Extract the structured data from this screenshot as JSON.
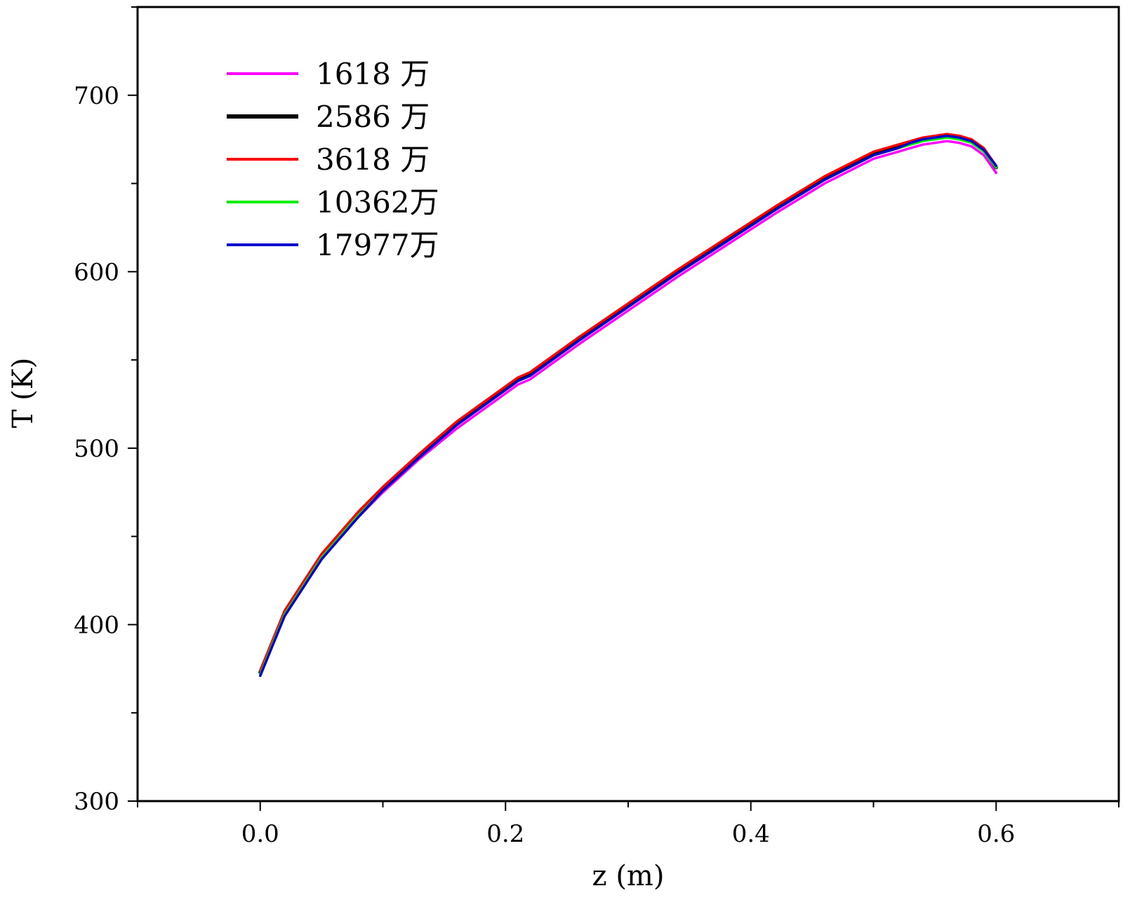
{
  "chart_data": {
    "type": "line",
    "xlabel": "z (m)",
    "ylabel": "T (K)",
    "xlim": [
      -0.1,
      0.7
    ],
    "ylim": [
      300,
      750
    ],
    "x_ticks": [
      "0.0",
      "0.2",
      "0.4",
      "0.6"
    ],
    "x_tick_values": [
      0.0,
      0.2,
      0.4,
      0.6
    ],
    "y_ticks": [
      "300",
      "400",
      "500",
      "600",
      "700"
    ],
    "y_tick_values": [
      300,
      400,
      500,
      600,
      700
    ],
    "grid": false,
    "legend_position": "top-left",
    "series": [
      {
        "name": "1618 万",
        "color": "#ff00ff",
        "x": [
          0.0,
          0.02,
          0.05,
          0.08,
          0.1,
          0.13,
          0.16,
          0.19,
          0.21,
          0.22,
          0.23,
          0.26,
          0.3,
          0.34,
          0.38,
          0.42,
          0.46,
          0.5,
          0.52,
          0.53,
          0.54,
          0.55,
          0.56,
          0.57,
          0.58,
          0.59,
          0.6
        ],
        "y": [
          373,
          405,
          437,
          461,
          475,
          494,
          511,
          526,
          536,
          539,
          544,
          559,
          578,
          597,
          615,
          633,
          650,
          664,
          668,
          670,
          672,
          673,
          674,
          673,
          671,
          666,
          656
        ]
      },
      {
        "name": "2586 万",
        "color": "#000000",
        "x": [
          0.0,
          0.02,
          0.05,
          0.08,
          0.1,
          0.13,
          0.16,
          0.19,
          0.21,
          0.22,
          0.23,
          0.26,
          0.3,
          0.34,
          0.38,
          0.42,
          0.46,
          0.5,
          0.52,
          0.53,
          0.54,
          0.55,
          0.56,
          0.57,
          0.58,
          0.59,
          0.6
        ],
        "y": [
          373,
          407,
          439,
          463,
          477,
          496,
          514,
          529,
          539,
          542,
          547,
          562,
          581,
          600,
          618,
          636,
          653,
          667,
          671,
          673,
          675,
          676,
          677,
          676,
          674,
          669,
          659
        ]
      },
      {
        "name": "3618 万",
        "color": "#ff0000",
        "x": [
          0.0,
          0.02,
          0.05,
          0.08,
          0.1,
          0.13,
          0.16,
          0.19,
          0.21,
          0.22,
          0.23,
          0.26,
          0.3,
          0.34,
          0.38,
          0.42,
          0.46,
          0.5,
          0.52,
          0.53,
          0.54,
          0.55,
          0.56,
          0.57,
          0.58,
          0.59,
          0.6
        ],
        "y": [
          374,
          408,
          440,
          464,
          478,
          497,
          515,
          530,
          540,
          543,
          548,
          563,
          582,
          601,
          619,
          637,
          654,
          668,
          672,
          674,
          676,
          677,
          678,
          677,
          675,
          670,
          660
        ]
      },
      {
        "name": "10362万",
        "color": "#00ee00",
        "x": [
          0.0,
          0.02,
          0.05,
          0.08,
          0.1,
          0.13,
          0.16,
          0.19,
          0.21,
          0.22,
          0.23,
          0.26,
          0.3,
          0.34,
          0.38,
          0.42,
          0.46,
          0.5,
          0.52,
          0.53,
          0.54,
          0.55,
          0.56,
          0.57,
          0.58,
          0.59,
          0.6
        ],
        "y": [
          372,
          406,
          438,
          462,
          476,
          495,
          513,
          528,
          538,
          541,
          546,
          561,
          580,
          599,
          617,
          635,
          652,
          666,
          670,
          672,
          674,
          675,
          676,
          675,
          673,
          668,
          659
        ]
      },
      {
        "name": "17977万",
        "color": "#0000cc",
        "x": [
          0.0,
          0.02,
          0.05,
          0.08,
          0.1,
          0.13,
          0.16,
          0.19,
          0.21,
          0.22,
          0.23,
          0.26,
          0.3,
          0.34,
          0.38,
          0.42,
          0.46,
          0.5,
          0.52,
          0.53,
          0.54,
          0.55,
          0.56,
          0.57,
          0.58,
          0.59,
          0.6
        ],
        "y": [
          371,
          405,
          437,
          461,
          476,
          495,
          513,
          528,
          538,
          541,
          546,
          561,
          580,
          599,
          617,
          635,
          652,
          666,
          670,
          673,
          675,
          676,
          677,
          676,
          674,
          669,
          660
        ]
      }
    ]
  }
}
